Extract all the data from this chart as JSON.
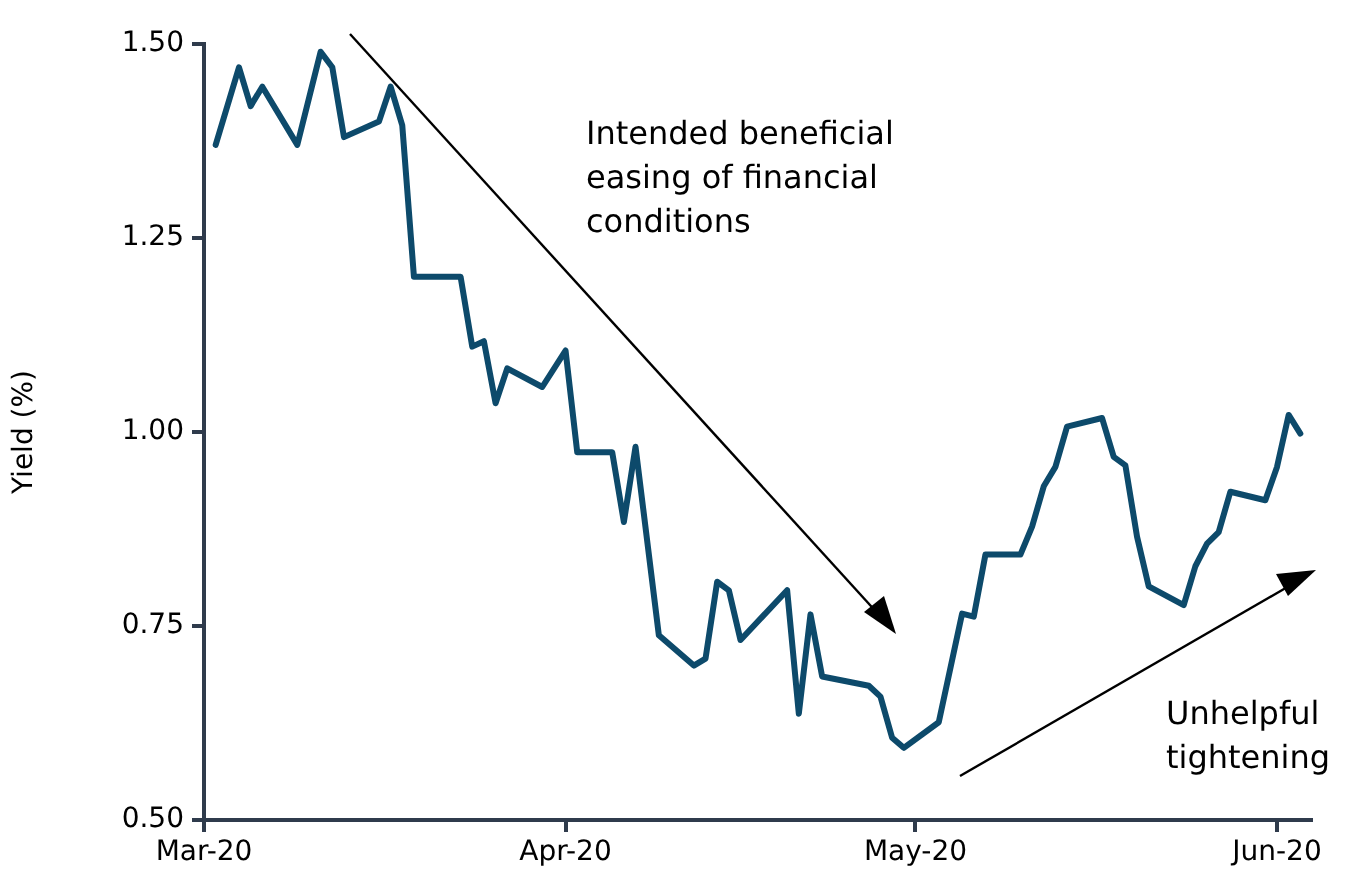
{
  "chart_data": {
    "type": "line",
    "ylabel": "Yield (%)",
    "x": [
      "2020-03-02",
      "2020-03-04",
      "2020-03-05",
      "2020-03-06",
      "2020-03-09",
      "2020-03-10",
      "2020-03-11",
      "2020-03-12",
      "2020-03-13",
      "2020-03-16",
      "2020-03-17",
      "2020-03-18",
      "2020-03-19",
      "2020-03-23",
      "2020-03-24",
      "2020-03-25",
      "2020-03-26",
      "2020-03-27",
      "2020-03-30",
      "2020-04-01",
      "2020-04-02",
      "2020-04-05",
      "2020-04-06",
      "2020-04-07",
      "2020-04-09",
      "2020-04-12",
      "2020-04-13",
      "2020-04-14",
      "2020-04-15",
      "2020-04-16",
      "2020-04-20",
      "2020-04-21",
      "2020-04-22",
      "2020-04-23",
      "2020-04-27",
      "2020-04-28",
      "2020-04-29",
      "2020-04-30",
      "2020-05-03",
      "2020-05-05",
      "2020-05-06",
      "2020-05-07",
      "2020-05-10",
      "2020-05-11",
      "2020-05-12",
      "2020-05-13",
      "2020-05-14",
      "2020-05-17",
      "2020-05-18",
      "2020-05-19",
      "2020-05-20",
      "2020-05-21",
      "2020-05-24",
      "2020-05-25",
      "2020-05-26",
      "2020-05-27",
      "2020-05-28",
      "2020-05-31",
      "2020-06-01",
      "2020-06-02",
      "2020-06-03"
    ],
    "series": [
      {
        "color": "#0d4a6b",
        "values": [
          1.37,
          1.47,
          1.42,
          1.445,
          1.37,
          1.43,
          1.49,
          1.47,
          1.38,
          1.4,
          1.445,
          1.395,
          1.2,
          1.2,
          1.11,
          1.117,
          1.037,
          1.082,
          1.058,
          1.105,
          0.974,
          0.974,
          0.884,
          0.981,
          0.738,
          0.699,
          0.708,
          0.807,
          0.796,
          0.732,
          0.796,
          0.637,
          0.765,
          0.685,
          0.673,
          0.659,
          0.606,
          0.593,
          0.626,
          0.766,
          0.762,
          0.842,
          0.842,
          0.878,
          0.93,
          0.955,
          1.007,
          1.018,
          0.968,
          0.957,
          0.865,
          0.801,
          0.777,
          0.827,
          0.856,
          0.871,
          0.923,
          0.912,
          0.955,
          1.022,
          0.998
        ]
      }
    ],
    "xlim": [
      "2020-03-01",
      "2020-06-04"
    ],
    "xticks": [
      {
        "value": "2020-03-01",
        "label": "Mar-20"
      },
      {
        "value": "2020-04-01",
        "label": "Apr-20"
      },
      {
        "value": "2020-05-01",
        "label": "May-20"
      },
      {
        "value": "2020-06-01",
        "label": "Jun-20"
      }
    ],
    "ylim": [
      0.5,
      1.5
    ],
    "yticks": [
      {
        "value": 0.5,
        "label": "0.50"
      },
      {
        "value": 0.75,
        "label": "0.75"
      },
      {
        "value": 1.0,
        "label": "1.00"
      },
      {
        "value": 1.25,
        "label": "1.25"
      },
      {
        "value": 1.5,
        "label": "1.50"
      }
    ],
    "grid": false,
    "legend": false,
    "marker": "none",
    "line_style": "solid",
    "annotations": [
      "Intended beneficial easing of financial conditions",
      "Unhelpful tightening"
    ]
  }
}
